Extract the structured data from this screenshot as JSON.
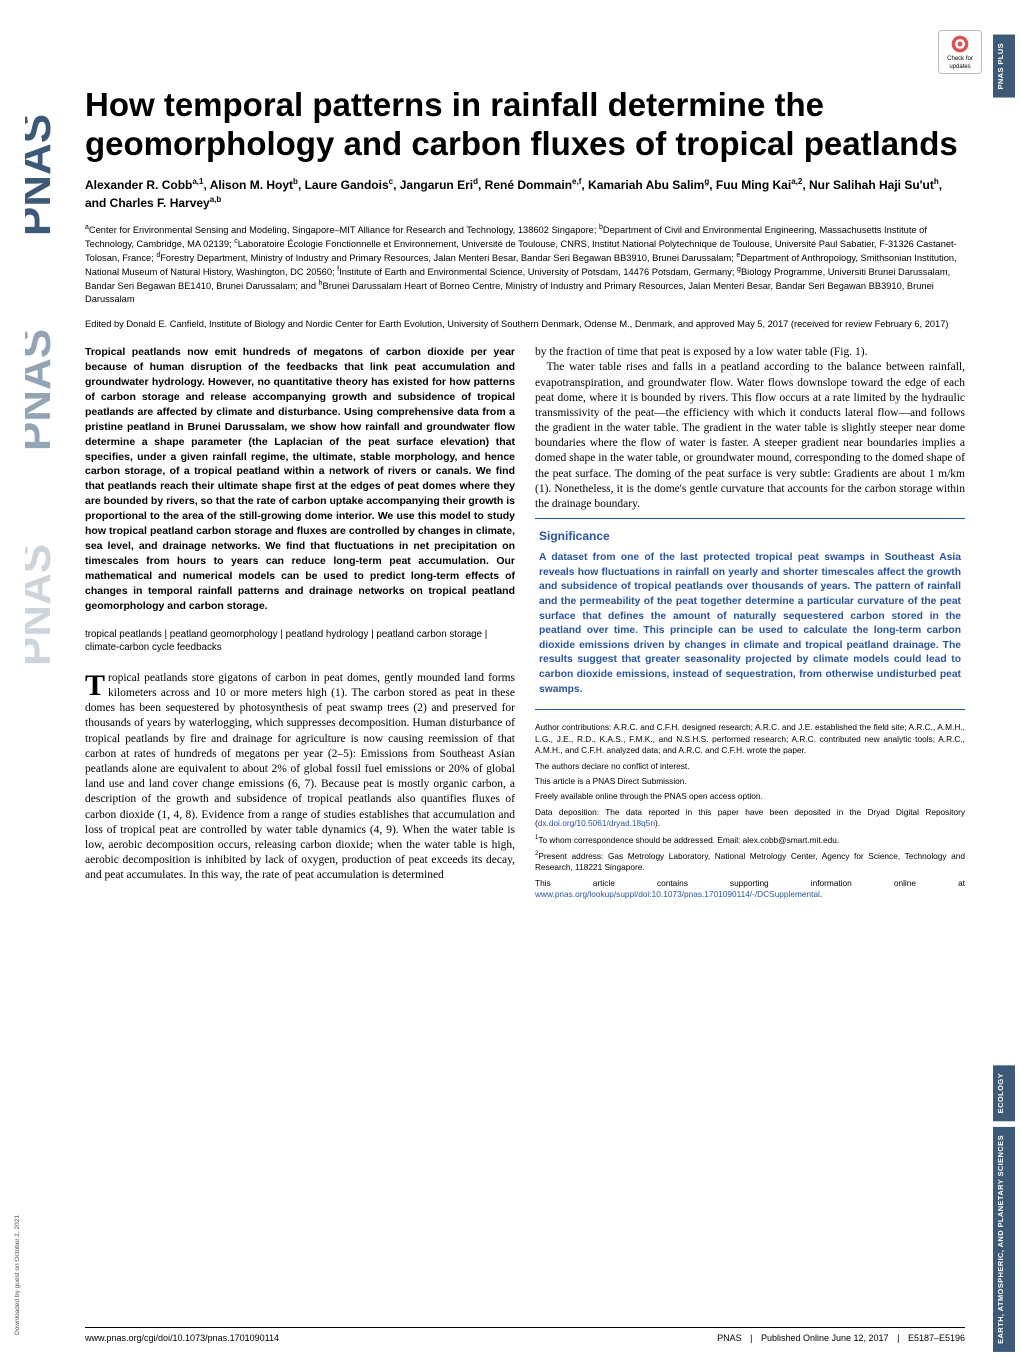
{
  "sideLabels": {
    "topRight": "PNAS PLUS",
    "lower1": "ECOLOGY",
    "lower2": "EARTH, ATMOSPHERIC, AND PLANETARY SCIENCES"
  },
  "checkUpdates": {
    "line1": "Check for",
    "line2": "updates"
  },
  "title": "How temporal patterns in rainfall determine the geomorphology and carbon fluxes of tropical peatlands",
  "authorsHtml": "Alexander R. Cobb<sup>a,1</sup>, Alison M. Hoyt<sup>b</sup>, Laure Gandois<sup>c</sup>, Jangarun Eri<sup>d</sup>, René Dommain<sup>e,f</sup>, Kamariah Abu Salim<sup>g</sup>, Fuu Ming Kai<sup>a,2</sup>, Nur Salihah Haji Su'ut<sup>h</sup>, and Charles F. Harvey<sup>a,b</sup>",
  "affiliationsHtml": "<sup>a</sup>Center for Environmental Sensing and Modeling, Singapore–MIT Alliance for Research and Technology, 138602 Singapore; <sup>b</sup>Department of Civil and Environmental Engineering, Massachusetts Institute of Technology, Cambridge, MA 02139; <sup>c</sup>Laboratoire Écologie Fonctionnelle et Environnement, Université de Toulouse, CNRS, Institut National Polytechnique de Toulouse, Université Paul Sabatier, F-31326 Castanet-Tolosan, France; <sup>d</sup>Forestry Department, Ministry of Industry and Primary Resources, Jalan Menteri Besar, Bandar Seri Begawan BB3910, Brunei Darussalam; <sup>e</sup>Department of Anthropology, Smithsonian Institution, National Museum of Natural History, Washington, DC 20560; <sup>f</sup>Institute of Earth and Environmental Science, University of Potsdam, 14476 Potsdam, Germany; <sup>g</sup>Biology Programme, Universiti Brunei Darussalam, Bandar Seri Begawan BE1410, Brunei Darussalam; and <sup>h</sup>Brunei Darussalam Heart of Borneo Centre, Ministry of Industry and Primary Resources, Jalan Menteri Besar, Bandar Seri Begawan BB3910, Brunei Darussalam",
  "edited": "Edited by Donald E. Canfield, Institute of Biology and Nordic Center for Earth Evolution, University of Southern Denmark, Odense M., Denmark, and approved May 5, 2017 (received for review February 6, 2017)",
  "abstract": "Tropical peatlands now emit hundreds of megatons of carbon dioxide per year because of human disruption of the feedbacks that link peat accumulation and groundwater hydrology. However, no quantitative theory has existed for how patterns of carbon storage and release accompanying growth and subsidence of tropical peatlands are affected by climate and disturbance. Using comprehensive data from a pristine peatland in Brunei Darussalam, we show how rainfall and groundwater flow determine a shape parameter (the Laplacian of the peat surface elevation) that specifies, under a given rainfall regime, the ultimate, stable morphology, and hence carbon storage, of a tropical peatland within a network of rivers or canals. We find that peatlands reach their ultimate shape first at the edges of peat domes where they are bounded by rivers, so that the rate of carbon uptake accompanying their growth is proportional to the area of the still-growing dome interior. We use this model to study how tropical peatland carbon storage and fluxes are controlled by changes in climate, sea level, and drainage networks. We find that fluctuations in net precipitation on timescales from hours to years can reduce long-term peat accumulation. Our mathematical and numerical models can be used to predict long-term effects of changes in temporal rainfall patterns and drainage networks on tropical peatland geomorphology and carbon storage.",
  "keywords": "tropical peatlands | peatland geomorphology | peatland hydrology | peatland carbon storage | climate-carbon cycle feedbacks",
  "leftBody": "ropical peatlands store gigatons of carbon in peat domes, gently mounded land forms kilometers across and 10 or more meters high (1). The carbon stored as peat in these domes has been sequestered by photosynthesis of peat swamp trees (2) and preserved for thousands of years by waterlogging, which suppresses decomposition. Human disturbance of tropical peatlands by fire and drainage for agriculture is now causing reemission of that carbon at rates of hundreds of megatons per year (2–5): Emissions from Southeast Asian peatlands alone are equivalent to about 2% of global fossil fuel emissions or 20% of global land use and land cover change emissions (6, 7). Because peat is mostly organic carbon, a description of the growth and subsidence of tropical peatlands also quantifies fluxes of carbon dioxide (1, 4, 8). Evidence from a range of studies establishes that accumulation and loss of tropical peat are controlled by water table dynamics (4, 9). When the water table is low, aerobic decomposition occurs, releasing carbon dioxide; when the water table is high, aerobic decomposition is inhibited by lack of oxygen, production of peat exceeds its decay, and peat accumulates. In this way, the rate of peat accumulation is determined",
  "rightBody1": "by the fraction of time that peat is exposed by a low water table (Fig. 1).",
  "rightBody2": "The water table rises and falls in a peatland according to the balance between rainfall, evapotranspiration, and groundwater flow. Water flows downslope toward the edge of each peat dome, where it is bounded by rivers. This flow occurs at a rate limited by the hydraulic transmissivity of the peat—the efficiency with which it conducts lateral flow—and follows the gradient in the water table. The gradient in the water table is slightly steeper near dome boundaries where the flow of water is faster. A steeper gradient near boundaries implies a domed shape in the water table, or groundwater mound, corresponding to the domed shape of the peat surface. The doming of the peat surface is very subtle: Gradients are about 1 m/km (1). Nonetheless, it is the dome's gentle curvature that accounts for the carbon storage within the drainage boundary.",
  "significance": {
    "head": "Significance",
    "body": "A dataset from one of the last protected tropical peat swamps in Southeast Asia reveals how fluctuations in rainfall on yearly and shorter timescales affect the growth and subsidence of tropical peatlands over thousands of years. The pattern of rainfall and the permeability of the peat together determine a particular curvature of the peat surface that defines the amount of naturally sequestered carbon stored in the peatland over time. This principle can be used to calculate the long-term carbon dioxide emissions driven by changes in climate and tropical peatland drainage. The results suggest that greater seasonality projected by climate models could lead to carbon dioxide emissions, instead of sequestration, from otherwise undisturbed peat swamps."
  },
  "footnotes": {
    "contrib": "Author contributions: A.R.C. and C.F.H. designed research; A.R.C. and J.E. established the field site; A.R.C., A.M.H., L.G., J.E., R.D., K.A.S., F.M.K., and N.S.H.S. performed research; A.R.C. contributed new analytic tools; A.R.C., A.M.H., and C.F.H. analyzed data; and A.R.C. and C.F.H. wrote the paper.",
    "conflict": "The authors declare no conflict of interest.",
    "direct": "This article is a PNAS Direct Submission.",
    "free": "Freely available online through the PNAS open access option.",
    "dataPrefix": "Data deposition: The data reported in this paper have been deposited in the Dryad Digital Repository (",
    "dataLink": "dx.doi.org/10.5061/dryad.18q5n",
    "dataSuffix": ").",
    "corr": "To whom correspondence should be addressed. Email: alex.cobb@smart.mit.edu.",
    "present": "Present address: Gas Metrology Laboratory, National Metrology Center, Agency for Science, Technology and Research, 118221 Singapore.",
    "suppPrefix": "This article contains supporting information online at ",
    "suppLink": "www.pnas.org/lookup/suppl/doi:10.1073/pnas.1701090114/-/DCSupplemental",
    "suppSuffix": "."
  },
  "footer": {
    "left": "www.pnas.org/cgi/doi/10.1073/pnas.1701090114",
    "rightJournal": "PNAS",
    "rightDate": "Published Online June 12, 2017",
    "rightPages": "E5187–E5196"
  },
  "dlNote": "Downloaded by guest on October 2, 2021",
  "colors": {
    "sideLabelBg": "#3c5a78",
    "linkBlue": "#2a5599"
  }
}
